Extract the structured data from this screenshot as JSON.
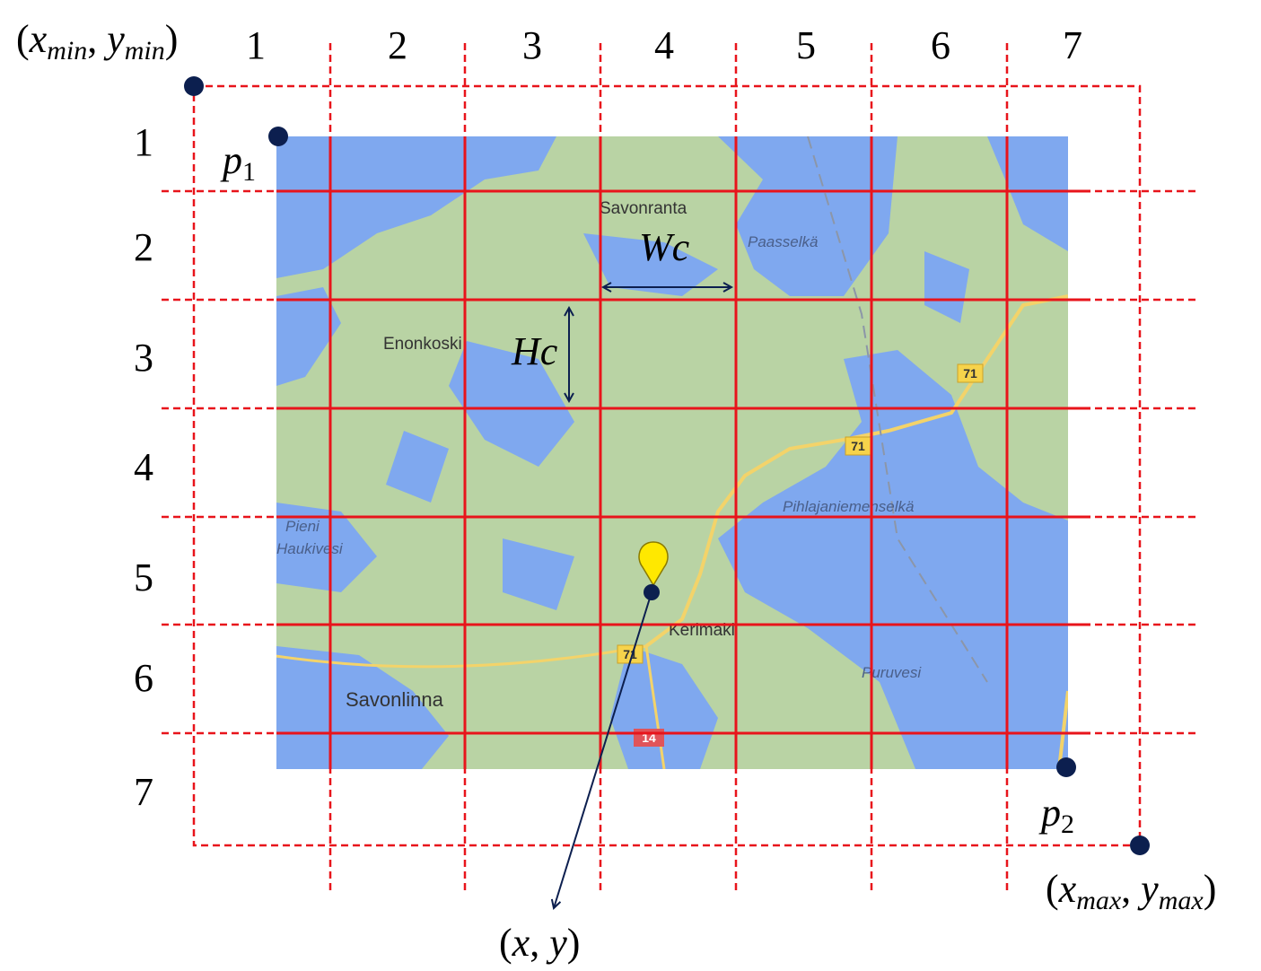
{
  "column_labels": [
    "1",
    "2",
    "3",
    "4",
    "5",
    "6",
    "7"
  ],
  "row_labels": [
    "1",
    "2",
    "3",
    "4",
    "5",
    "6",
    "7"
  ],
  "min_corner": [
    "(",
    "x",
    "min",
    ", ",
    "y",
    "min",
    ")"
  ],
  "max_corner": [
    "(",
    "x",
    "max",
    ", ",
    "y",
    "max",
    ")"
  ],
  "p1": [
    "p",
    "1"
  ],
  "p2": [
    "p",
    "2"
  ],
  "cell_width": "Wc",
  "cell_height": "Hc",
  "point": [
    "(",
    "x",
    ", ",
    "y",
    ")"
  ],
  "map": {
    "places": [
      "Savonranta",
      "Paasselkä",
      "Enonkoski",
      "Pihlajaniemenselkä",
      "Pieni",
      "Haukivesi",
      "Kerimäki",
      "Savonlinna",
      "Puruvesi"
    ],
    "road_signs": [
      "71",
      "71",
      "71",
      "14"
    ]
  }
}
